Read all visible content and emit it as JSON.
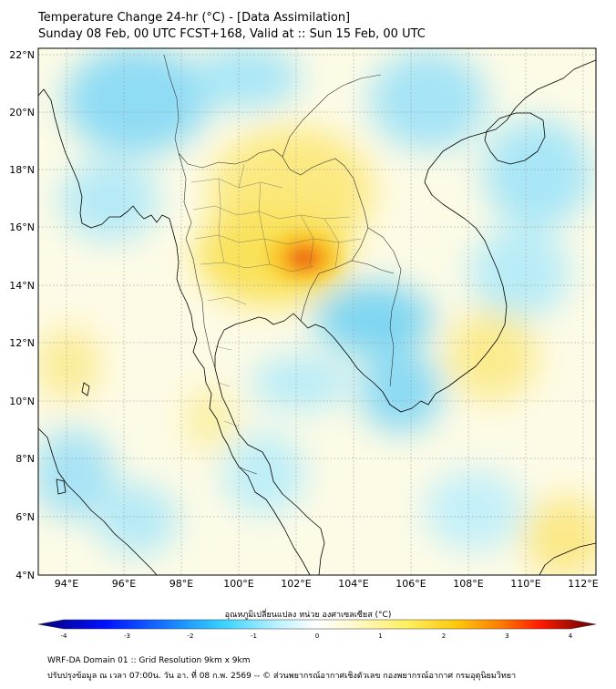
{
  "header": {
    "title": "Temperature Change 24-hr (°C) - [Data Assimilation]",
    "subtitle": "Sunday 08 Feb, 00 UTC FCST+168, Valid at :: Sun 15 Feb, 00 UTC"
  },
  "map": {
    "lat_labels": [
      "22°N",
      "20°N",
      "18°N",
      "16°N",
      "14°N",
      "12°N",
      "10°N",
      "8°N",
      "6°N",
      "4°N"
    ],
    "lon_labels": [
      "94°E",
      "96°E",
      "98°E",
      "100°E",
      "102°E",
      "104°E",
      "106°E",
      "108°E",
      "110°E",
      "112°E"
    ],
    "field_features": [
      {
        "name": "warm-core-northeast-thailand",
        "lon": 102.2,
        "lat": 15.0,
        "value": 2.9
      },
      {
        "name": "warm-central-thailand",
        "lon": 100.5,
        "lat": 15.5,
        "value": 1.3
      },
      {
        "name": "warm-upper-thailand",
        "lon": 101.0,
        "lat": 18.0,
        "value": 1.0
      },
      {
        "name": "cool-cambodia",
        "lon": 105.5,
        "lat": 12.3,
        "value": -1.3
      },
      {
        "name": "cool-south-vietnam",
        "lon": 106.0,
        "lat": 10.3,
        "value": -1.1
      },
      {
        "name": "cool-northern-myanmar",
        "lon": 96.5,
        "lat": 20.0,
        "value": -1.0
      },
      {
        "name": "cool-gulf-of-tonkin",
        "lon": 108.8,
        "lat": 19.2,
        "value": -0.9
      },
      {
        "name": "cool-andaman-south",
        "lon": 94.5,
        "lat": 7.5,
        "value": -0.8
      },
      {
        "name": "warm-central-andaman",
        "lon": 94.2,
        "lat": 11.5,
        "value": 0.9
      },
      {
        "name": "warm-east-vietnam-sea",
        "lon": 109.0,
        "lat": 11.5,
        "value": 0.9
      },
      {
        "name": "warm-south-china-sea-south",
        "lon": 111.5,
        "lat": 5.5,
        "value": 0.9
      }
    ]
  },
  "colorbar": {
    "label": "อุณหภูมิเปลี่ยนแปลง หน่วย องศาเซลเซียส (°C)",
    "min": -4,
    "max": 4,
    "tick_labels": [
      "-4",
      "-3",
      "-2",
      "-1",
      "0",
      "1",
      "2",
      "3",
      "4"
    ],
    "colors": [
      "#08007a",
      "#0010ff",
      "#29aaff",
      "#40e0ff",
      "#cdf6ff",
      "#ffffff",
      "#fff9c8",
      "#ffef60",
      "#ffc90a",
      "#ff7a00",
      "#ff1a00",
      "#b90000",
      "#600000"
    ]
  },
  "footer": {
    "line1": "WRF-DA Domain 01 :: Grid Resolution 9km x 9km",
    "line2": "ปรับปรุงข้อมูล ณ เวลา 07:00น. วัน อา. ที่ 08 ก.พ. 2569 -- © ส่วนพยากรณ์อากาศเชิงตัวเลข กองพยากรณ์อากาศ กรมอุตุนิยมวิทยา"
  }
}
